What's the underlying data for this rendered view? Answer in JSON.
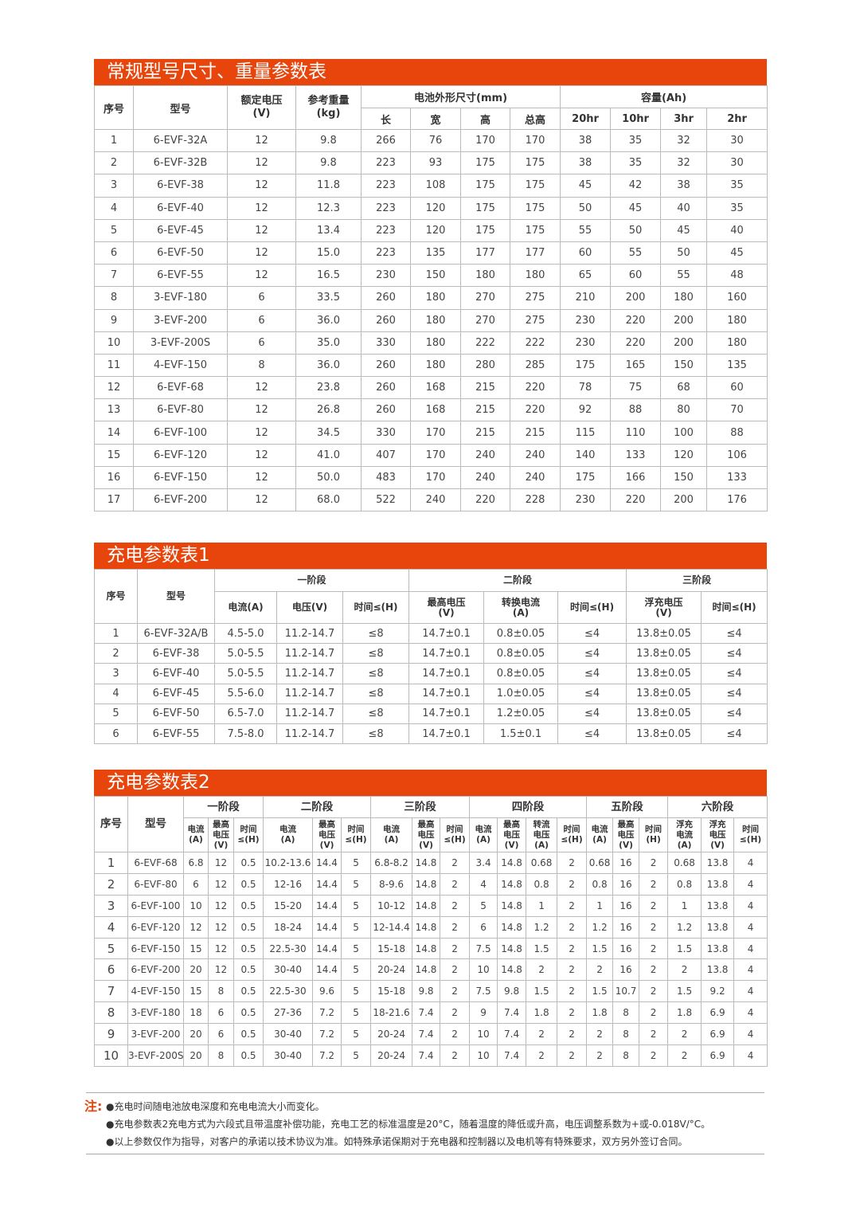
{
  "table1": {
    "title": "常规型号尺寸、重量参数表",
    "headers": {
      "no": "序号",
      "model": "型号",
      "voltage": "额定电压\n(V)",
      "weight": "参考重量\n(kg)",
      "dims": "电池外形尺寸(mm)",
      "capacity": "容量(Ah)",
      "dim_cols": [
        "长",
        "宽",
        "高",
        "总高"
      ],
      "cap_cols": [
        "20hr",
        "10hr",
        "3hr",
        "2hr"
      ]
    },
    "rows": [
      [
        "1",
        "6-EVF-32A",
        "12",
        "9.8",
        "266",
        "76",
        "170",
        "170",
        "38",
        "35",
        "32",
        "30"
      ],
      [
        "2",
        "6-EVF-32B",
        "12",
        "9.8",
        "223",
        "93",
        "175",
        "175",
        "38",
        "35",
        "32",
        "30"
      ],
      [
        "3",
        "6-EVF-38",
        "12",
        "11.8",
        "223",
        "108",
        "175",
        "175",
        "45",
        "42",
        "38",
        "35"
      ],
      [
        "4",
        "6-EVF-40",
        "12",
        "12.3",
        "223",
        "120",
        "175",
        "175",
        "50",
        "45",
        "40",
        "35"
      ],
      [
        "5",
        "6-EVF-45",
        "12",
        "13.4",
        "223",
        "120",
        "175",
        "175",
        "55",
        "50",
        "45",
        "40"
      ],
      [
        "6",
        "6-EVF-50",
        "12",
        "15.0",
        "223",
        "135",
        "177",
        "177",
        "60",
        "55",
        "50",
        "45"
      ],
      [
        "7",
        "6-EVF-55",
        "12",
        "16.5",
        "230",
        "150",
        "180",
        "180",
        "65",
        "60",
        "55",
        "48"
      ],
      [
        "8",
        "3-EVF-180",
        "6",
        "33.5",
        "260",
        "180",
        "270",
        "275",
        "210",
        "200",
        "180",
        "160"
      ],
      [
        "9",
        "3-EVF-200",
        "6",
        "36.0",
        "260",
        "180",
        "270",
        "275",
        "230",
        "220",
        "200",
        "180"
      ],
      [
        "10",
        "3-EVF-200S",
        "6",
        "35.0",
        "330",
        "180",
        "222",
        "222",
        "230",
        "220",
        "200",
        "180"
      ],
      [
        "11",
        "4-EVF-150",
        "8",
        "36.0",
        "260",
        "180",
        "280",
        "285",
        "175",
        "165",
        "150",
        "135"
      ],
      [
        "12",
        "6-EVF-68",
        "12",
        "23.8",
        "260",
        "168",
        "215",
        "220",
        "78",
        "75",
        "68",
        "60"
      ],
      [
        "13",
        "6-EVF-80",
        "12",
        "26.8",
        "260",
        "168",
        "215",
        "220",
        "92",
        "88",
        "80",
        "70"
      ],
      [
        "14",
        "6-EVF-100",
        "12",
        "34.5",
        "330",
        "170",
        "215",
        "215",
        "115",
        "110",
        "100",
        "88"
      ],
      [
        "15",
        "6-EVF-120",
        "12",
        "41.0",
        "407",
        "170",
        "240",
        "240",
        "140",
        "133",
        "120",
        "106"
      ],
      [
        "16",
        "6-EVF-150",
        "12",
        "50.0",
        "483",
        "170",
        "240",
        "240",
        "175",
        "166",
        "150",
        "133"
      ],
      [
        "17",
        "6-EVF-200",
        "12",
        "68.0",
        "522",
        "240",
        "220",
        "228",
        "230",
        "220",
        "200",
        "176"
      ]
    ]
  },
  "table2": {
    "title": "充电参数表1",
    "headers": {
      "no": "序号",
      "model": "型号",
      "stages": [
        "一阶段",
        "二阶段",
        "三阶段"
      ],
      "cols": [
        "电流(A)",
        "电压(V)",
        "时间≤(H)",
        "最高电压\n(V)",
        "转换电流\n(A)",
        "时间≤(H)",
        "浮充电压\n(V)",
        "时间≤(H)"
      ]
    },
    "rows": [
      [
        "1",
        "6-EVF-32A/B",
        "4.5-5.0",
        "11.2-14.7",
        "≤8",
        "14.7±0.1",
        "0.8±0.05",
        "≤4",
        "13.8±0.05",
        "≤4"
      ],
      [
        "2",
        "6-EVF-38",
        "5.0-5.5",
        "11.2-14.7",
        "≤8",
        "14.7±0.1",
        "0.8±0.05",
        "≤4",
        "13.8±0.05",
        "≤4"
      ],
      [
        "3",
        "6-EVF-40",
        "5.0-5.5",
        "11.2-14.7",
        "≤8",
        "14.7±0.1",
        "0.8±0.05",
        "≤4",
        "13.8±0.05",
        "≤4"
      ],
      [
        "4",
        "6-EVF-45",
        "5.5-6.0",
        "11.2-14.7",
        "≤8",
        "14.7±0.1",
        "1.0±0.05",
        "≤4",
        "13.8±0.05",
        "≤4"
      ],
      [
        "5",
        "6-EVF-50",
        "6.5-7.0",
        "11.2-14.7",
        "≤8",
        "14.7±0.1",
        "1.2±0.05",
        "≤4",
        "13.8±0.05",
        "≤4"
      ],
      [
        "6",
        "6-EVF-55",
        "7.5-8.0",
        "11.2-14.7",
        "≤8",
        "14.7±0.1",
        "1.5±0.1",
        "≤4",
        "13.8±0.05",
        "≤4"
      ]
    ]
  },
  "table3": {
    "title": "充电参数表2",
    "headers": {
      "no": "序号",
      "model": "型号",
      "stages": [
        "一阶段",
        "二阶段",
        "三阶段",
        "四阶段",
        "五阶段",
        "六阶段"
      ],
      "cols": [
        "电流\n(A)",
        "最高\n电压\n(V)",
        "时间\n≤(H)",
        "电流\n(A)",
        "最高\n电压\n(V)",
        "时间\n≤(H)",
        "电流\n(A)",
        "最高\n电压\n(V)",
        "时间\n≤(H)",
        "电流\n(A)",
        "最高\n电压\n(V)",
        "转流\n电压\n(A)",
        "时间\n≤(H)",
        "电流\n(A)",
        "最高\n电压\n(V)",
        "时间\n(H)",
        "浮充\n电流\n(A)",
        "浮充\n电压\n(V)",
        "时间\n≤(H)"
      ]
    },
    "rows": [
      [
        "1",
        "6-EVF-68",
        "6.8",
        "12",
        "0.5",
        "10.2-13.6",
        "14.4",
        "5",
        "6.8-8.2",
        "14.8",
        "2",
        "3.4",
        "14.8",
        "0.68",
        "2",
        "0.68",
        "16",
        "2",
        "0.68",
        "13.8",
        "4"
      ],
      [
        "2",
        "6-EVF-80",
        "6",
        "12",
        "0.5",
        "12-16",
        "14.4",
        "5",
        "8-9.6",
        "14.8",
        "2",
        "4",
        "14.8",
        "0.8",
        "2",
        "0.8",
        "16",
        "2",
        "0.8",
        "13.8",
        "4"
      ],
      [
        "3",
        "6-EVF-100",
        "10",
        "12",
        "0.5",
        "15-20",
        "14.4",
        "5",
        "10-12",
        "14.8",
        "2",
        "5",
        "14.8",
        "1",
        "2",
        "1",
        "16",
        "2",
        "1",
        "13.8",
        "4"
      ],
      [
        "4",
        "6-EVF-120",
        "12",
        "12",
        "0.5",
        "18-24",
        "14.4",
        "5",
        "12-14.4",
        "14.8",
        "2",
        "6",
        "14.8",
        "1.2",
        "2",
        "1.2",
        "16",
        "2",
        "1.2",
        "13.8",
        "4"
      ],
      [
        "5",
        "6-EVF-150",
        "15",
        "12",
        "0.5",
        "22.5-30",
        "14.4",
        "5",
        "15-18",
        "14.8",
        "2",
        "7.5",
        "14.8",
        "1.5",
        "2",
        "1.5",
        "16",
        "2",
        "1.5",
        "13.8",
        "4"
      ],
      [
        "6",
        "6-EVF-200",
        "20",
        "12",
        "0.5",
        "30-40",
        "14.4",
        "5",
        "20-24",
        "14.8",
        "2",
        "10",
        "14.8",
        "2",
        "2",
        "2",
        "16",
        "2",
        "2",
        "13.8",
        "4"
      ],
      [
        "7",
        "4-EVF-150",
        "15",
        "8",
        "0.5",
        "22.5-30",
        "9.6",
        "5",
        "15-18",
        "9.8",
        "2",
        "7.5",
        "9.8",
        "1.5",
        "2",
        "1.5",
        "10.7",
        "2",
        "1.5",
        "9.2",
        "4"
      ],
      [
        "8",
        "3-EVF-180",
        "18",
        "6",
        "0.5",
        "27-36",
        "7.2",
        "5",
        "18-21.6",
        "7.4",
        "2",
        "9",
        "7.4",
        "1.8",
        "2",
        "1.8",
        "8",
        "2",
        "1.8",
        "6.9",
        "4"
      ],
      [
        "9",
        "3-EVF-200",
        "20",
        "6",
        "0.5",
        "30-40",
        "7.2",
        "5",
        "20-24",
        "7.4",
        "2",
        "10",
        "7.4",
        "2",
        "2",
        "2",
        "8",
        "2",
        "2",
        "6.9",
        "4"
      ],
      [
        "10",
        "3-EVF-200S",
        "20",
        "8",
        "0.5",
        "30-40",
        "7.2",
        "5",
        "20-24",
        "7.4",
        "2",
        "10",
        "7.4",
        "2",
        "2",
        "2",
        "8",
        "2",
        "2",
        "6.9",
        "4"
      ]
    ]
  },
  "notes": {
    "label": "注:",
    "items": [
      "●充电时间随电池放电深度和充电电流大小而变化。",
      "●充电参数表2充电方式为六段式且带温度补偿功能，充电工艺的标准温度是20°C，随着温度的降低或升高，电压调整系数为+或-0.018V/°C。",
      "●以上参数仅作为指导，对客户的承诺以技术协议为准。如特殊承诺保期对于充电器和控制器以及电机等有特殊要求，双方另外签订合同。"
    ]
  },
  "colors": {
    "accent": "#e8450c"
  }
}
